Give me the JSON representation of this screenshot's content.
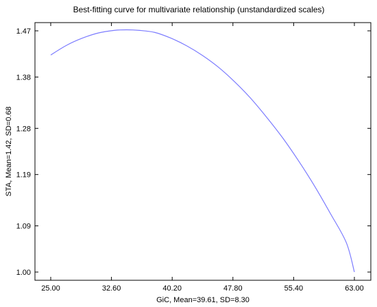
{
  "chart_data": {
    "type": "line",
    "title": "Best-fitting  curve for multivariate relationship (unstandardized scales)",
    "xlabel": "GiC, Mean=39.61, SD=8.30",
    "ylabel": "STA, Mean=1.42, SD=0.68",
    "xlim": [
      25.0,
      63.0
    ],
    "ylim": [
      1.0,
      1.47
    ],
    "x_ticks": [
      "25.00",
      "32.60",
      "40.20",
      "47.80",
      "55.40",
      "63.00"
    ],
    "y_ticks": [
      "1.00",
      "1.09",
      "1.19",
      "1.28",
      "1.38",
      "1.47"
    ],
    "grid": false,
    "series": [
      {
        "color": "#7b7bff",
        "x": [
          25.0,
          27.0,
          29.0,
          31.0,
          33.0,
          34.5,
          36.0,
          38.0,
          40.0,
          42.0,
          44.0,
          46.0,
          48.0,
          50.0,
          52.0,
          54.0,
          56.0,
          58.0,
          60.0,
          62.0,
          63.0
        ],
        "y": [
          1.423,
          1.442,
          1.456,
          1.466,
          1.471,
          1.472,
          1.471,
          1.467,
          1.456,
          1.441,
          1.422,
          1.399,
          1.371,
          1.339,
          1.302,
          1.262,
          1.217,
          1.168,
          1.114,
          1.057,
          1.0
        ]
      }
    ]
  }
}
